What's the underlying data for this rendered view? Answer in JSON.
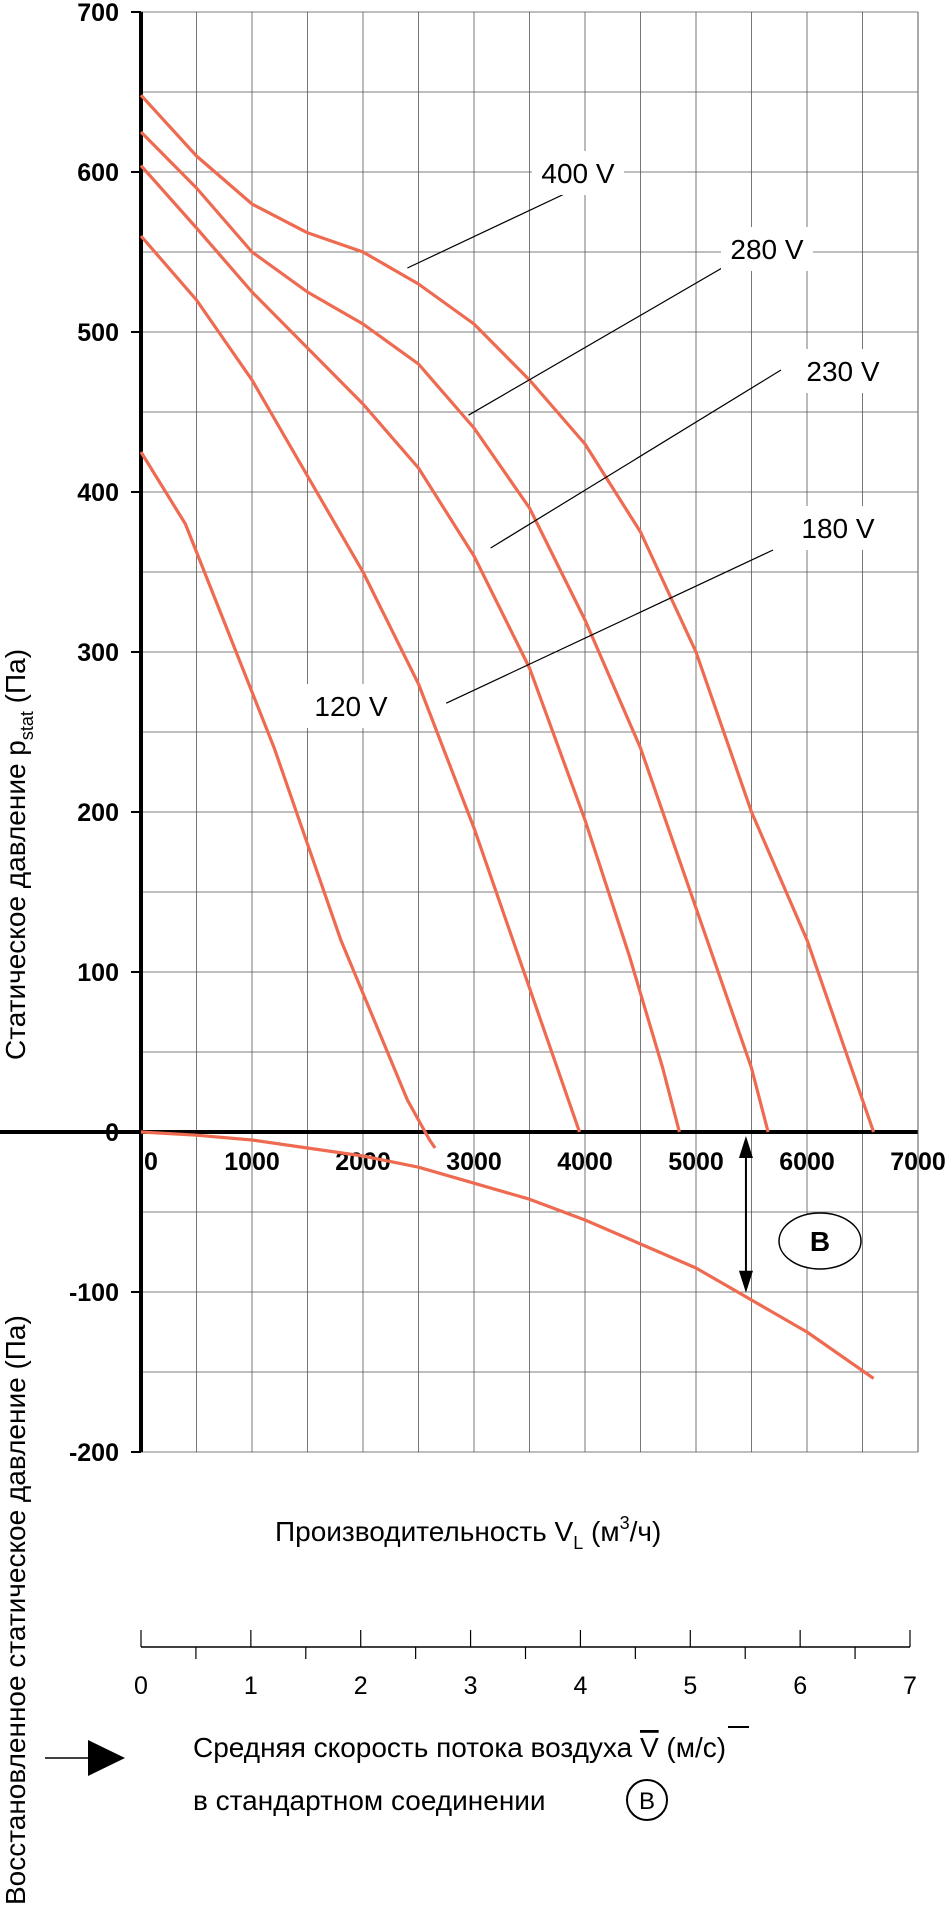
{
  "chart_data": {
    "type": "line",
    "xlabel_main": "Производительность V",
    "xlabel_sub": "L",
    "xlabel_unit": " (м",
    "xlabel_sup": "3",
    "xlabel_end": "/ч)",
    "ylabel_top_main": "Статическое давление p",
    "ylabel_top_sub": "stat",
    "ylabel_top_end": " (Па)",
    "ylabel_bottom": "Восстановленное статическое давление (Па)",
    "x_ticks": [
      "0",
      "1000",
      "2000",
      "3000",
      "4000",
      "5000",
      "6000",
      "7000"
    ],
    "y_ticks": [
      "700",
      "600",
      "500",
      "400",
      "300",
      "200",
      "100",
      "0",
      "-100",
      "-200"
    ],
    "xlim": [
      0,
      7000
    ],
    "ylim": [
      -200,
      700
    ],
    "grid": true,
    "series": [
      {
        "name": "400 V",
        "x": [
          0,
          500,
          1000,
          1500,
          2000,
          2500,
          3000,
          3500,
          4000,
          4500,
          5000,
          5500,
          6000,
          6300,
          6500,
          6600
        ],
        "y": [
          648,
          610,
          580,
          562,
          550,
          530,
          505,
          470,
          430,
          375,
          300,
          200,
          120,
          60,
          20,
          0
        ]
      },
      {
        "name": "280 V",
        "x": [
          0,
          500,
          1000,
          1500,
          2000,
          2500,
          3000,
          3500,
          4000,
          4500,
          5000,
          5300,
          5500,
          5650
        ],
        "y": [
          625,
          590,
          550,
          525,
          505,
          480,
          440,
          390,
          320,
          240,
          140,
          80,
          40,
          0
        ]
      },
      {
        "name": "230 V",
        "x": [
          0,
          500,
          1000,
          1500,
          2000,
          2500,
          3000,
          3500,
          4000,
          4400,
          4700,
          4850
        ],
        "y": [
          604,
          565,
          525,
          490,
          455,
          415,
          360,
          290,
          195,
          110,
          40,
          0
        ]
      },
      {
        "name": "180 V",
        "x": [
          0,
          500,
          1000,
          1500,
          2000,
          2500,
          3000,
          3300,
          3600,
          3850,
          3950
        ],
        "y": [
          560,
          520,
          470,
          410,
          350,
          280,
          190,
          130,
          70,
          20,
          0
        ]
      },
      {
        "name": "120 V",
        "x": [
          0,
          400,
          800,
          1200,
          1500,
          1800,
          2100,
          2400,
          2600,
          2650
        ],
        "y": [
          425,
          380,
          310,
          240,
          180,
          120,
          70,
          20,
          -5,
          -10
        ]
      },
      {
        "name": "",
        "x": [
          0,
          500,
          1000,
          1500,
          2000,
          2500,
          3000,
          3500,
          4000,
          4500,
          5000,
          5500,
          6000,
          6600
        ],
        "y": [
          0,
          -2,
          -5,
          -10,
          -15,
          -22,
          -32,
          -42,
          -55,
          -70,
          -85,
          -105,
          -125,
          -154
        ]
      }
    ],
    "curve_labels": [
      "400 V",
      "280 V",
      "230 V",
      "180 V",
      "120 V"
    ],
    "marker_label": "B",
    "marker_x": 5450,
    "marker_y_top": 0,
    "marker_y_bottom": -103,
    "velocity_ticks": [
      "0",
      "1",
      "2",
      "3",
      "4",
      "5",
      "6",
      "7"
    ],
    "velocity_label_line1_a": "Средняя скорость потока воздуха ",
    "velocity_label_line1_sym": "V",
    "velocity_label_line1_b": " (м/с)",
    "velocity_label_line2": "в стандартном соединении",
    "velocity_marker": "B",
    "curve_color": "#ee6a50"
  }
}
